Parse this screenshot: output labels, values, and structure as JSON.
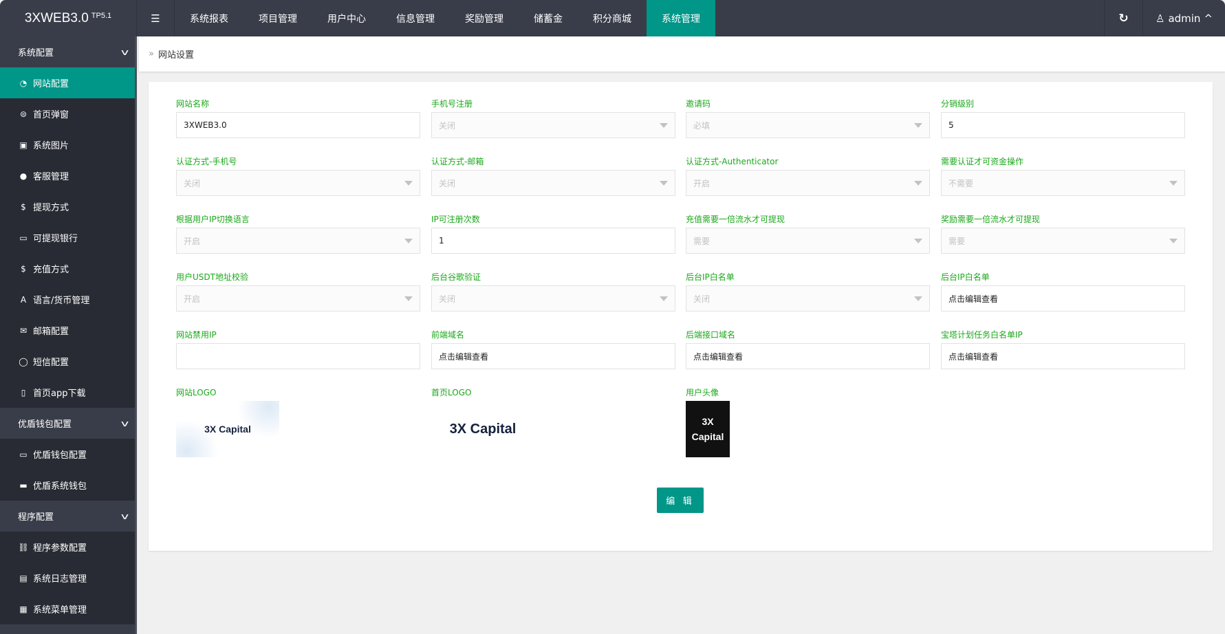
{
  "header": {
    "app_title": "3XWEB3.0",
    "app_version": "TP5.1",
    "nav": [
      "系统报表",
      "项目管理",
      "用户中心",
      "信息管理",
      "奖励管理",
      "储蓄金",
      "积分商城",
      "系统管理"
    ],
    "active_nav": "系统管理",
    "user": "admin"
  },
  "sidebar": [
    {
      "type": "group",
      "label": "系统配置"
    },
    {
      "type": "item",
      "label": "网站配置",
      "icon": "dashboard-icon",
      "glyph": "◔",
      "active": true
    },
    {
      "type": "item",
      "label": "首页弹窗",
      "icon": "popup-icon",
      "glyph": "⊜"
    },
    {
      "type": "item",
      "label": "系统图片",
      "icon": "image-icon",
      "glyph": "▣"
    },
    {
      "type": "item",
      "label": "客服管理",
      "icon": "chat-icon",
      "glyph": "●"
    },
    {
      "type": "item",
      "label": "提现方式",
      "icon": "dollar-icon",
      "glyph": "$"
    },
    {
      "type": "item",
      "label": "可提现银行",
      "icon": "credit-card-icon",
      "glyph": "▭"
    },
    {
      "type": "item",
      "label": "充值方式",
      "icon": "dollar-icon",
      "glyph": "$"
    },
    {
      "type": "item",
      "label": "语言/货币管理",
      "icon": "font-icon",
      "glyph": "A"
    },
    {
      "type": "item",
      "label": "邮箱配置",
      "icon": "envelope-icon",
      "glyph": "✉"
    },
    {
      "type": "item",
      "label": "短信配置",
      "icon": "comment-icon",
      "glyph": "◯"
    },
    {
      "type": "item",
      "label": "首页app下载",
      "icon": "tablet-icon",
      "glyph": "▯"
    },
    {
      "type": "group",
      "label": "优盾钱包配置"
    },
    {
      "type": "item",
      "label": "优盾钱包配置",
      "icon": "credit-card-icon",
      "glyph": "▭"
    },
    {
      "type": "item",
      "label": "优盾系统钱包",
      "icon": "credit-card-icon",
      "glyph": "▬"
    },
    {
      "type": "group",
      "label": "程序配置"
    },
    {
      "type": "item",
      "label": "程序参数配置",
      "icon": "link-icon",
      "glyph": "⛓"
    },
    {
      "type": "item",
      "label": "系统日志管理",
      "icon": "clipboard-icon",
      "glyph": "▤"
    },
    {
      "type": "item",
      "label": "系统菜单管理",
      "icon": "window-icon",
      "glyph": "▦"
    },
    {
      "type": "group",
      "label": ""
    }
  ],
  "breadcrumb": "网站设置",
  "form": {
    "fields": [
      {
        "label": "网站名称",
        "type": "input",
        "value": "3XWEB3.0"
      },
      {
        "label": "手机号注册",
        "type": "select",
        "value": "关闭"
      },
      {
        "label": "邀请码",
        "type": "select",
        "value": "必填"
      },
      {
        "label": "分销级别",
        "type": "input",
        "value": "5"
      },
      {
        "label": "认证方式-手机号",
        "type": "select",
        "value": "关闭"
      },
      {
        "label": "认证方式-邮箱",
        "type": "select",
        "value": "关闭"
      },
      {
        "label": "认证方式-Authenticator",
        "type": "select",
        "value": "开启"
      },
      {
        "label": "需要认证才可资金操作",
        "type": "select",
        "value": "不需要"
      },
      {
        "label": "根据用户IP切换语言",
        "type": "select",
        "value": "开启"
      },
      {
        "label": "IP可注册次数",
        "type": "input",
        "value": "1"
      },
      {
        "label": "充值需要一倍流水才可提现",
        "type": "select",
        "value": "需要"
      },
      {
        "label": "奖励需要一倍流水才可提现",
        "type": "select",
        "value": "需要"
      },
      {
        "label": "用户USDT地址校验",
        "type": "select",
        "value": "开启"
      },
      {
        "label": "后台谷歌验证",
        "type": "select",
        "value": "关闭"
      },
      {
        "label": "后台IP白名单",
        "type": "select",
        "value": "关闭"
      },
      {
        "label": "后台IP白名单",
        "type": "input",
        "value": "点击编辑查看"
      },
      {
        "label": "网站禁用IP",
        "type": "input",
        "value": ""
      },
      {
        "label": "前端域名",
        "type": "input",
        "value": "点击编辑查看"
      },
      {
        "label": "后端接口域名",
        "type": "input",
        "value": "点击编辑查看"
      },
      {
        "label": "宝塔计划任务白名单IP",
        "type": "input",
        "value": "点击编辑查看"
      }
    ],
    "images": [
      {
        "label": "网站LOGO",
        "logo_text": "3X Capital"
      },
      {
        "label": "首页LOGO",
        "logo_text": "3X Capital"
      },
      {
        "label": "用户头像",
        "logo_text": "3X Capital"
      }
    ],
    "edit_button": "编 辑"
  },
  "colors": {
    "topbar": "#393d49",
    "sidebar": "#282b33",
    "accent": "#009688",
    "label": "#1aa81a"
  }
}
